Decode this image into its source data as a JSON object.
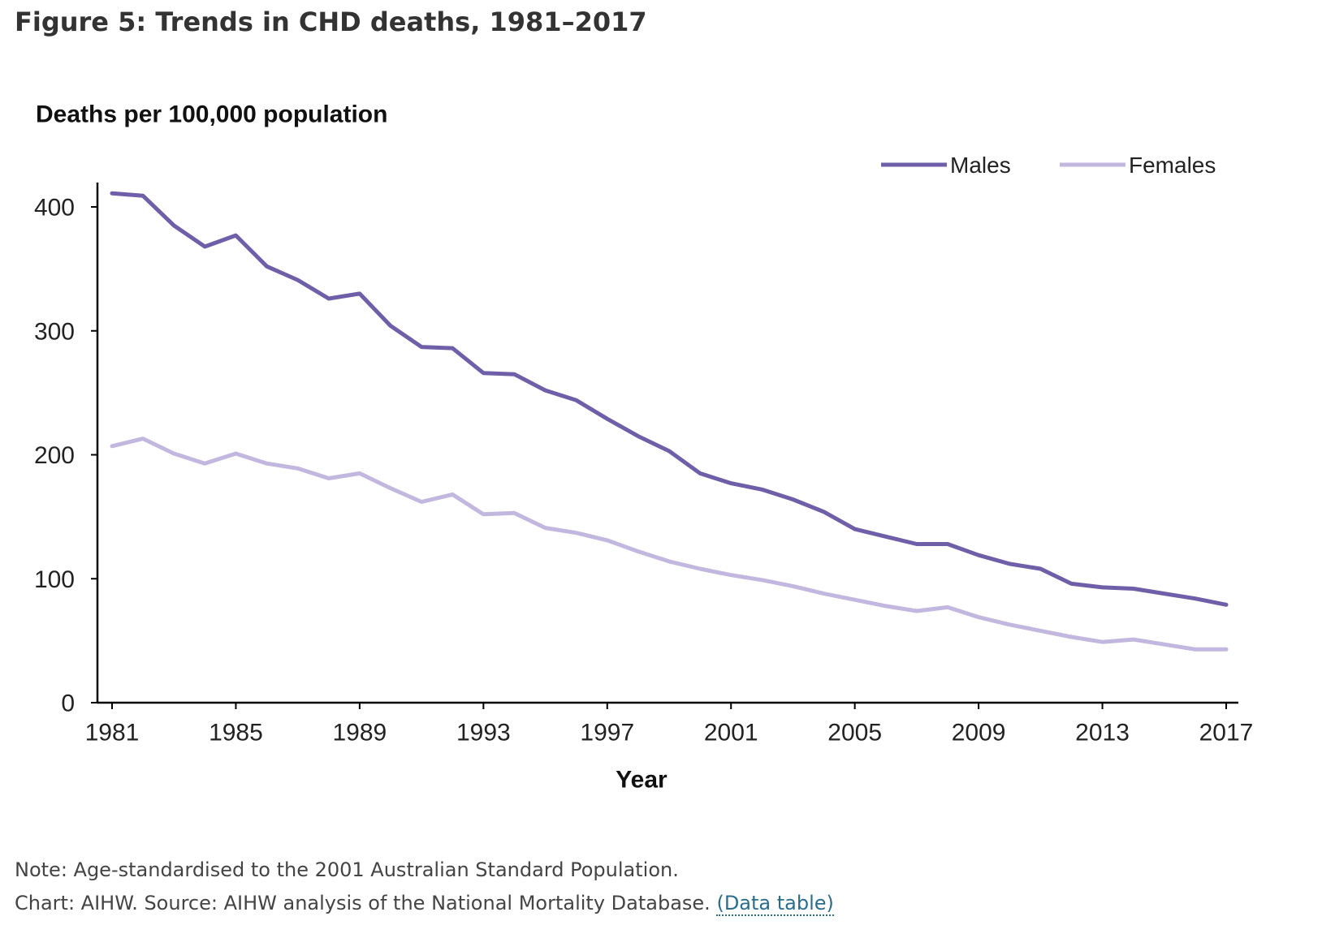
{
  "figure": {
    "title": "Figure 5: Trends in CHD deaths, 1981–2017"
  },
  "notes": {
    "note": "Note: Age-standardised to the 2001 Australian Standard Population.",
    "source": "Chart: AIHW. Source: AIHW analysis of the National Mortality Database.",
    "link_label": "(Data table)"
  },
  "colors": {
    "males": "#6e5fa8",
    "females": "#c2b7de",
    "axis": "#000000"
  },
  "chart_data": {
    "type": "line",
    "title": "",
    "ylabel": "Deaths per 100,000 population",
    "xlabel": "Year",
    "ylim": [
      0,
      400
    ],
    "xlim": [
      1981,
      2017
    ],
    "yticks": [
      0,
      100,
      200,
      300,
      400
    ],
    "xticks": [
      1981,
      1985,
      1989,
      1993,
      1997,
      2001,
      2005,
      2009,
      2013,
      2017
    ],
    "grid": false,
    "legend_position": "top-right",
    "x": [
      1981,
      1982,
      1983,
      1984,
      1985,
      1986,
      1987,
      1988,
      1989,
      1990,
      1991,
      1992,
      1993,
      1994,
      1995,
      1996,
      1997,
      1998,
      1999,
      2000,
      2001,
      2002,
      2003,
      2004,
      2005,
      2006,
      2007,
      2008,
      2009,
      2010,
      2011,
      2012,
      2013,
      2014,
      2015,
      2016,
      2017
    ],
    "series": [
      {
        "name": "Males",
        "values": [
          411,
          409,
          385,
          368,
          377,
          352,
          341,
          326,
          330,
          304,
          287,
          286,
          266,
          265,
          252,
          244,
          229,
          215,
          203,
          185,
          177,
          172,
          164,
          154,
          140,
          134,
          128,
          128,
          119,
          112,
          108,
          96,
          93,
          92,
          88,
          84,
          79
        ]
      },
      {
        "name": "Females",
        "values": [
          207,
          213,
          201,
          193,
          201,
          193,
          189,
          181,
          185,
          173,
          162,
          168,
          152,
          153,
          141,
          137,
          131,
          122,
          114,
          108,
          103,
          99,
          94,
          88,
          83,
          78,
          74,
          77,
          69,
          63,
          58,
          53,
          49,
          51,
          47,
          43,
          43
        ]
      }
    ]
  }
}
